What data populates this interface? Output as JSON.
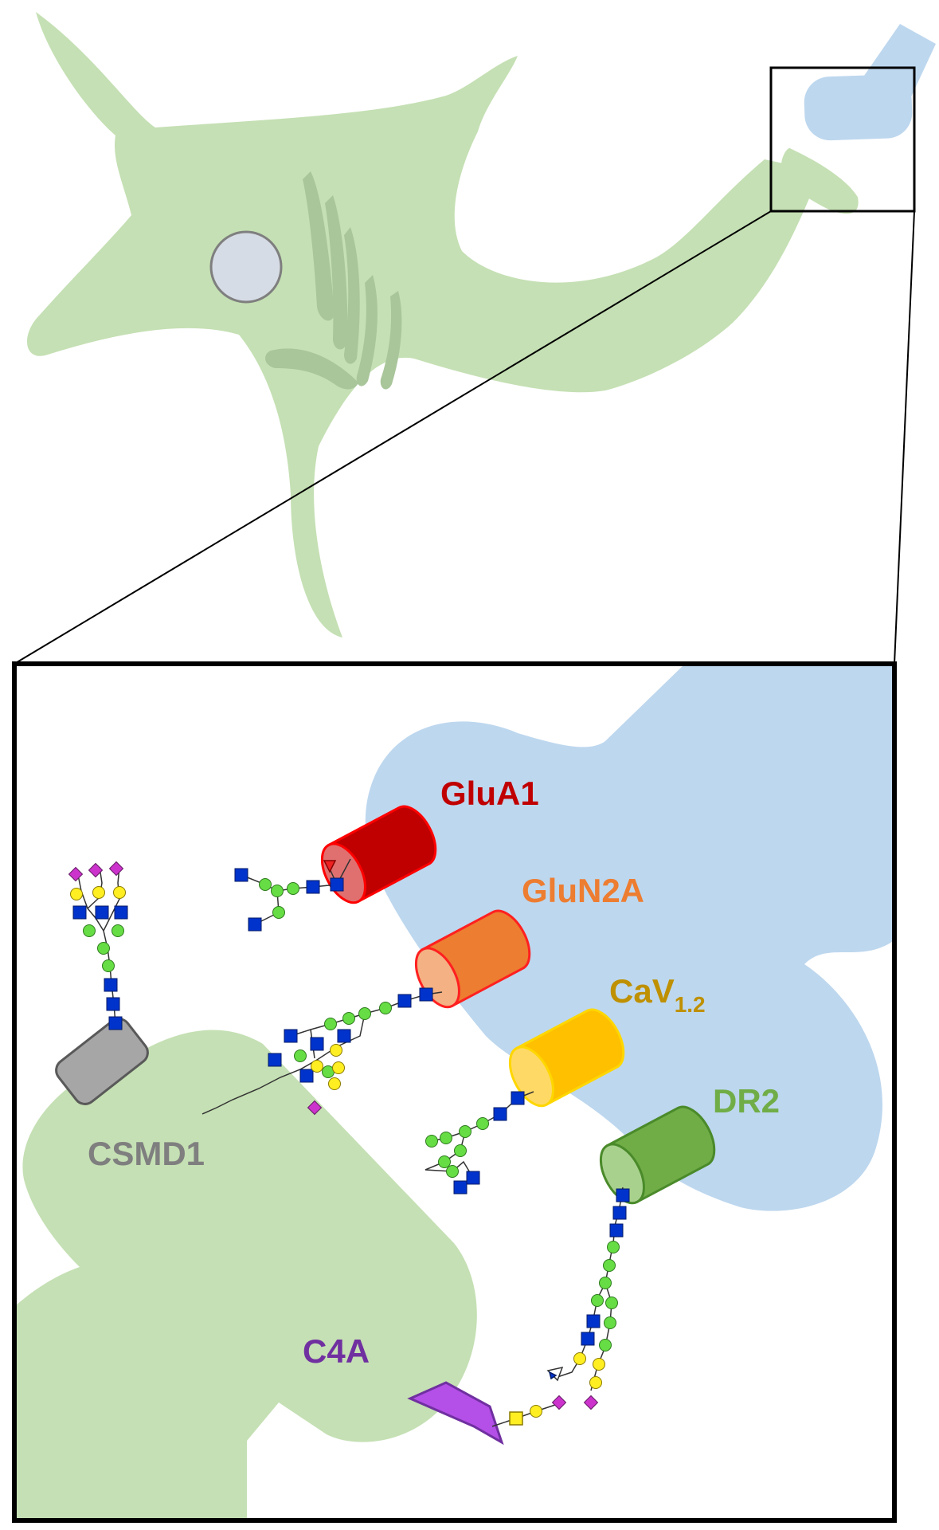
{
  "labels": {
    "glua1": "GluA1",
    "glun2a": "GluN2A",
    "cav_main": "CaV",
    "cav_sub": "1.2",
    "dr2": "DR2",
    "csmd1": "CSMD1",
    "c4a": "C4A"
  },
  "colors": {
    "cell_green": "#c5e0b4",
    "synapse_blue": "#bdd7ee",
    "nucleus_fill": "#d6dce5",
    "golgi": "#a9c59a",
    "glua1": "#c00000",
    "glun2a": "#ed7d31",
    "cav": "#ffc000",
    "cav_label": "#bf9000",
    "dr2": "#70ad47",
    "csmd1": "#a6a6a6",
    "csmd1_label": "#7f7f7f",
    "c4a": "#b44fe8",
    "c4a_label": "#7030a0",
    "glycan_glcnac": "#0033cc",
    "glycan_mannose": "#66dd44",
    "glycan_galactose": "#ffee22",
    "glycan_sialic": "#cc33cc",
    "glycan_fucose": "#ee2222"
  }
}
